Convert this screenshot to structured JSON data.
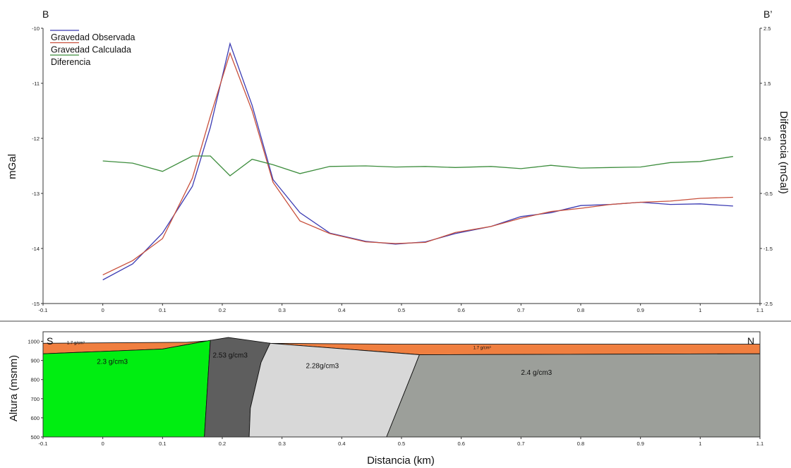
{
  "chart_data": [
    {
      "type": "line",
      "corner_left": "B",
      "corner_right": "B’",
      "ylabel": "mGal",
      "y2label": "Diferencia (mGal)",
      "xlim": [
        -0.1,
        1.1
      ],
      "ylim": [
        -15,
        -10
      ],
      "y2lim": [
        -2.5,
        2.5
      ],
      "x_ticks": [
        "-0.1",
        "0",
        "0.1",
        "0.2",
        "0.3",
        "0.4",
        "0.5",
        "0.6",
        "0.7",
        "0.8",
        "0.9",
        "1",
        "1.1"
      ],
      "y_ticks": [
        "-10",
        "-11",
        "-12",
        "-13",
        "-14",
        "-15"
      ],
      "y2_ticks": [
        "2.5",
        "1.5",
        "0.5",
        "-0.5",
        "-1.5",
        "-2.5"
      ],
      "legend_position": "top-left",
      "series": [
        {
          "name": "Gravedad Observada",
          "axis": "left",
          "color": "#3b3bb3",
          "x": [
            0,
            0.05,
            0.1,
            0.15,
            0.18,
            0.213,
            0.25,
            0.285,
            0.33,
            0.38,
            0.44,
            0.49,
            0.54,
            0.59,
            0.65,
            0.7,
            0.75,
            0.8,
            0.85,
            0.9,
            0.95,
            1.0,
            1.055
          ],
          "y": [
            -14.57,
            -14.28,
            -13.72,
            -12.87,
            -11.8,
            -10.28,
            -11.4,
            -12.75,
            -13.35,
            -13.72,
            -13.87,
            -13.92,
            -13.88,
            -13.73,
            -13.6,
            -13.42,
            -13.35,
            -13.22,
            -13.2,
            -13.16,
            -13.2,
            -13.19,
            -13.23
          ]
        },
        {
          "name": "Gravedad Calculada",
          "axis": "left",
          "color": "#c8503c",
          "x": [
            0,
            0.05,
            0.1,
            0.15,
            0.18,
            0.213,
            0.25,
            0.285,
            0.33,
            0.38,
            0.44,
            0.49,
            0.54,
            0.59,
            0.65,
            0.7,
            0.75,
            0.8,
            0.85,
            0.9,
            0.95,
            1.0,
            1.055
          ],
          "y": [
            -14.48,
            -14.22,
            -13.82,
            -12.72,
            -11.6,
            -10.45,
            -11.5,
            -12.8,
            -13.5,
            -13.73,
            -13.88,
            -13.91,
            -13.89,
            -13.71,
            -13.6,
            -13.45,
            -13.33,
            -13.27,
            -13.2,
            -13.16,
            -13.14,
            -13.09,
            -13.07
          ]
        },
        {
          "name": "Diferencia",
          "axis": "right",
          "color": "#3d8d3d",
          "x": [
            0,
            0.05,
            0.1,
            0.15,
            0.18,
            0.213,
            0.25,
            0.285,
            0.33,
            0.38,
            0.44,
            0.49,
            0.54,
            0.59,
            0.65,
            0.7,
            0.75,
            0.8,
            0.85,
            0.9,
            0.95,
            1.0,
            1.055
          ],
          "y": [
            0.09,
            0.05,
            -0.1,
            0.18,
            0.18,
            -0.18,
            0.12,
            0.02,
            -0.14,
            -0.01,
            0.0,
            -0.02,
            -0.01,
            -0.03,
            -0.01,
            -0.05,
            0.01,
            -0.04,
            -0.03,
            -0.02,
            0.06,
            0.08,
            0.17
          ]
        }
      ]
    },
    {
      "type": "area",
      "corner_left": "S",
      "corner_right": "N",
      "ylabel": "Altura (msnm)",
      "xlabel": "Distancia (km)",
      "xlim": [
        -0.1,
        1.1
      ],
      "ylim": [
        500,
        1050
      ],
      "x_ticks": [
        "-0.1",
        "0",
        "0.1",
        "0.2",
        "0.3",
        "0.4",
        "0.5",
        "0.6",
        "0.7",
        "0.8",
        "0.9",
        "1",
        "1.1"
      ],
      "y_ticks": [
        "1000",
        "900",
        "800",
        "700",
        "600",
        "500"
      ],
      "layers": [
        {
          "label": "1.7 g/cm³",
          "color": "#f07f40",
          "label_at": [
            -0.06,
            985
          ],
          "x": [
            -0.1,
            0.14,
            0.21,
            0.28,
            0.5,
            1.1,
            1.1,
            0.53,
            0.28,
            0.2,
            0.18,
            0.1,
            -0.1
          ],
          "y": [
            990,
            995,
            1010,
            990,
            985,
            985,
            935,
            930,
            990,
            1005,
            1005,
            960,
            935
          ]
        },
        {
          "label": "1.7 g/cm³",
          "color": "#f07f40",
          "label_at": [
            0.62,
            960
          ],
          "x": [],
          "y": []
        },
        {
          "label": "2.3 g/cm3",
          "color": "#00ee11",
          "label_at": [
            -0.01,
            882
          ],
          "x": [
            -0.1,
            0.1,
            0.18,
            0.17,
            -0.1
          ],
          "y": [
            935,
            960,
            1005,
            500,
            500
          ]
        },
        {
          "label": "2.53 g/cm3",
          "color": "#5e5e5e",
          "label_at": [
            0.184,
            915
          ],
          "x": [
            0.17,
            0.18,
            0.21,
            0.28,
            0.265,
            0.247,
            0.245,
            0.17
          ],
          "y": [
            500,
            1005,
            1020,
            990,
            890,
            650,
            500,
            500
          ]
        },
        {
          "label": "2.28g/cm3",
          "color": "#d8d8d8",
          "label_at": [
            0.34,
            860
          ],
          "x": [
            0.245,
            0.247,
            0.265,
            0.28,
            0.53,
            0.52,
            0.475,
            0.245
          ],
          "y": [
            500,
            650,
            890,
            990,
            930,
            850,
            500,
            500
          ]
        },
        {
          "label": "2.4 g/cm3",
          "color": "#9c9f9a",
          "label_at": [
            0.7,
            825
          ],
          "x": [
            0.475,
            0.52,
            0.53,
            1.1,
            1.1,
            0.475
          ],
          "y": [
            500,
            850,
            930,
            935,
            500,
            500
          ]
        }
      ]
    }
  ]
}
